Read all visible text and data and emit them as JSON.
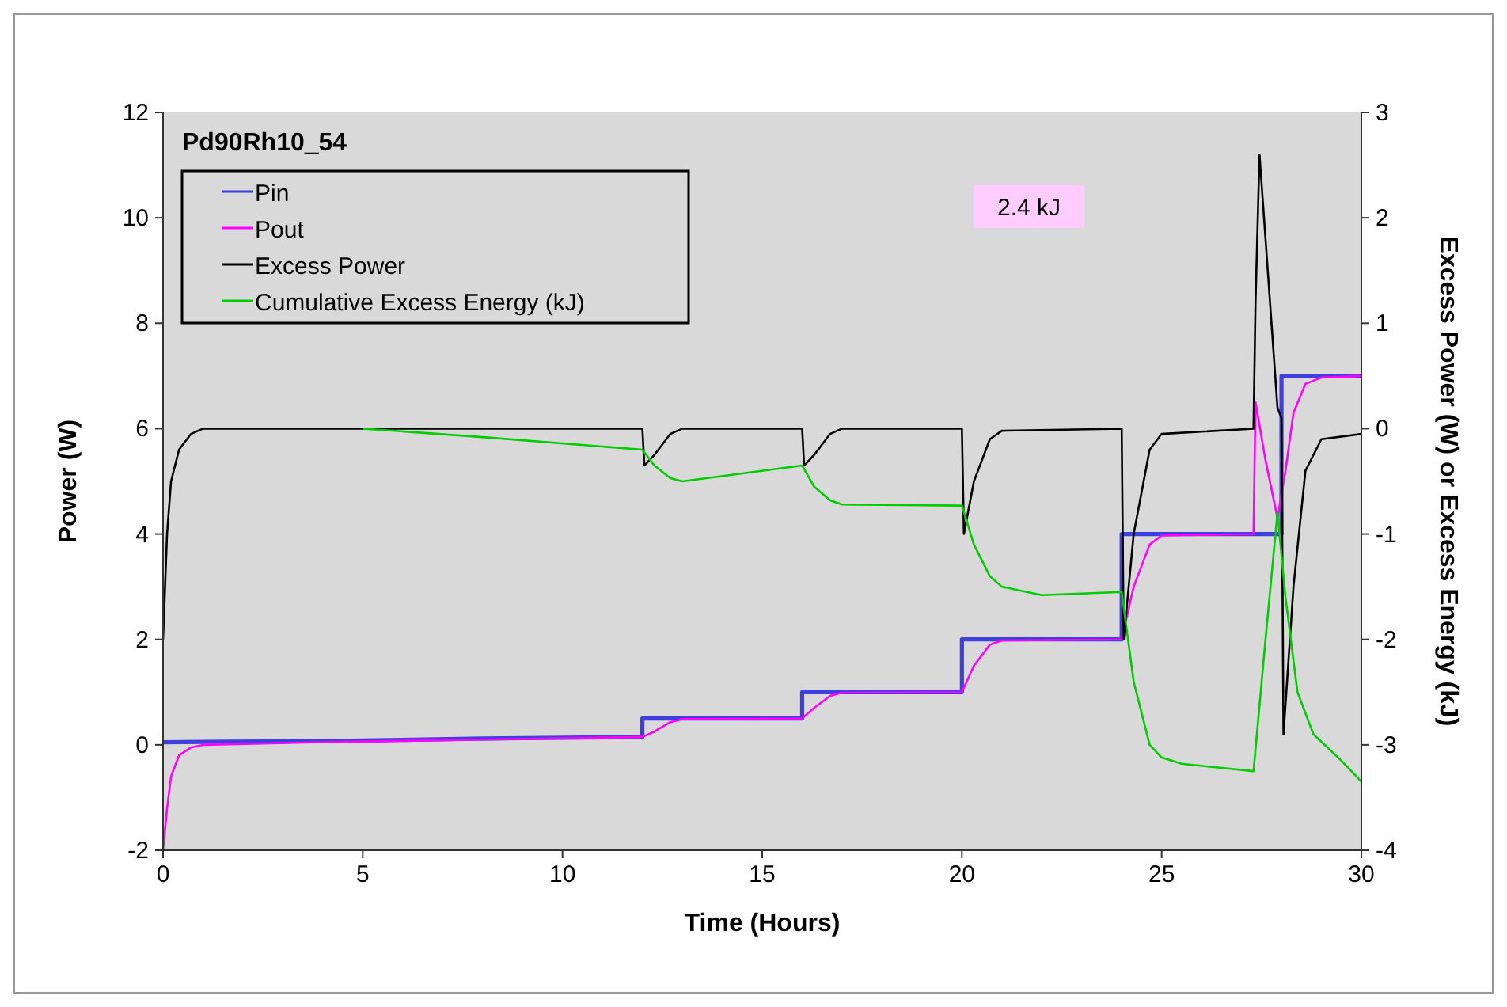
{
  "chart_data": {
    "type": "line",
    "title": "Pd90Rh10_54",
    "xlabel": "Time (Hours)",
    "ylabel": "Power (W)",
    "y2label": "Excess Power (W) or Excess Energy (kJ)",
    "annotations": [
      "2.4 kJ"
    ],
    "xlim": [
      0,
      30
    ],
    "xticks": [
      0,
      5,
      10,
      15,
      20,
      25,
      30
    ],
    "ylim": [
      -2,
      12
    ],
    "yticks": [
      -2,
      0,
      2,
      4,
      6,
      8,
      10,
      12
    ],
    "y2lim": [
      -4,
      3
    ],
    "y2ticks": [
      -4,
      -3,
      -2,
      -1,
      0,
      1,
      2,
      3
    ],
    "grid": false,
    "legend": "top left",
    "marker": "none",
    "line_style": "solid",
    "series": [
      {
        "name": "Pin",
        "color": "#3f3fdf",
        "x": [
          0,
          4,
          8,
          12,
          12,
          16,
          16,
          20,
          20,
          24,
          24,
          28,
          28,
          30
        ],
        "values": [
          0.05,
          0.07,
          0.12,
          0.15,
          0.5,
          0.5,
          1,
          1,
          2,
          2,
          4,
          4,
          7,
          7
        ]
      },
      {
        "name": "Pout",
        "color": "#ff00ff",
        "x": [
          0,
          0.1,
          0.2,
          0.4,
          0.7,
          1,
          4,
          8,
          12,
          12.3,
          12.7,
          13,
          16,
          16.3,
          16.7,
          17,
          20,
          20.3,
          20.7,
          21,
          24,
          24.3,
          24.7,
          25,
          27.3,
          27.35,
          27.6,
          27.9,
          28.1,
          28.3,
          28.6,
          29,
          30
        ],
        "values": [
          -2,
          -1.2,
          -0.6,
          -0.2,
          -0.05,
          0,
          0.05,
          0.1,
          0.15,
          0.25,
          0.43,
          0.49,
          0.5,
          0.7,
          0.93,
          0.99,
          1,
          1.5,
          1.9,
          1.98,
          2,
          3,
          3.8,
          3.97,
          4,
          6.5,
          5.4,
          4.3,
          5.2,
          6.3,
          6.85,
          6.97,
          7
        ]
      },
      {
        "name": "Excess Power",
        "color": "#000000",
        "axis": "y2",
        "x": [
          0,
          0.1,
          0.2,
          0.4,
          0.7,
          1,
          4,
          8,
          12,
          12.05,
          12.3,
          12.7,
          13,
          16,
          16.05,
          16.3,
          16.7,
          17,
          20,
          20.05,
          20.3,
          20.7,
          21,
          24,
          24.05,
          24.3,
          24.7,
          25,
          27.3,
          27.35,
          27.45,
          27.6,
          27.9,
          28,
          28.05,
          28.3,
          28.6,
          29,
          30
        ],
        "values": [
          -2,
          -1,
          -0.5,
          -0.2,
          -0.05,
          0,
          0,
          0,
          0,
          -0.35,
          -0.25,
          -0.05,
          0,
          0,
          -0.35,
          -0.25,
          -0.05,
          0,
          0,
          -1,
          -0.5,
          -0.1,
          -0.02,
          0,
          -2,
          -1,
          -0.2,
          -0.05,
          0,
          1.2,
          2.6,
          1.8,
          0.2,
          0.1,
          -2.9,
          -1.5,
          -0.4,
          -0.1,
          -0.05
        ]
      },
      {
        "name": "Cumulative Excess Energy (kJ)",
        "color": "#00cc00",
        "axis": "y2",
        "x": [
          5,
          8,
          12,
          12.3,
          12.7,
          13,
          16,
          16.3,
          16.7,
          17,
          20,
          20.3,
          20.7,
          21,
          22,
          24,
          24.3,
          24.7,
          25,
          25.5,
          27.3,
          27.6,
          27.9,
          28.1,
          28.4,
          28.8,
          29.5,
          30
        ],
        "values": [
          0,
          -0.08,
          -0.2,
          -0.35,
          -0.47,
          -0.5,
          -0.35,
          -0.55,
          -0.68,
          -0.72,
          -0.73,
          -1.1,
          -1.4,
          -1.5,
          -1.58,
          -1.55,
          -2.4,
          -3.0,
          -3.12,
          -3.18,
          -3.25,
          -2.0,
          -0.8,
          -1.6,
          -2.5,
          -2.9,
          -3.15,
          -3.35
        ]
      }
    ]
  }
}
